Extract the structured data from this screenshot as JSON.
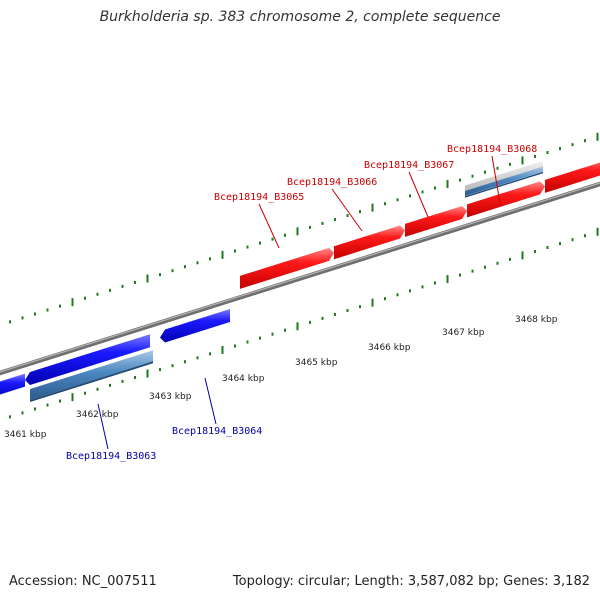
{
  "title": "Burkholderia sp. 383 chromosome 2, complete sequence",
  "footer": {
    "accession": "Accession: NC_007511",
    "topology": "Topology: circular; Length: 3,587,082 bp; Genes: 3,182"
  },
  "colors": {
    "forward_gene": "#ff0000",
    "reverse_gene": "#0000ee",
    "feature": "#4a86c0",
    "backbone": "#888888",
    "tick": "#1e7a1e",
    "forward_label": "#cc0000",
    "reverse_label": "#0000aa"
  },
  "kbp_labels": [
    "3461 kbp",
    "3462 kbp",
    "3463 kbp",
    "3464 kbp",
    "3465 kbp",
    "3466 kbp",
    "3467 kbp",
    "3468 kbp"
  ],
  "gene_labels": [
    {
      "text": "Bcep18194_B3065",
      "strand": "forward"
    },
    {
      "text": "Bcep18194_B3066",
      "strand": "forward"
    },
    {
      "text": "Bcep18194_B3067",
      "strand": "forward"
    },
    {
      "text": "Bcep18194_B3068",
      "strand": "forward"
    },
    {
      "text": "Bcep18194_B3063",
      "strand": "reverse"
    },
    {
      "text": "Bcep18194_B3064",
      "strand": "reverse"
    }
  ]
}
